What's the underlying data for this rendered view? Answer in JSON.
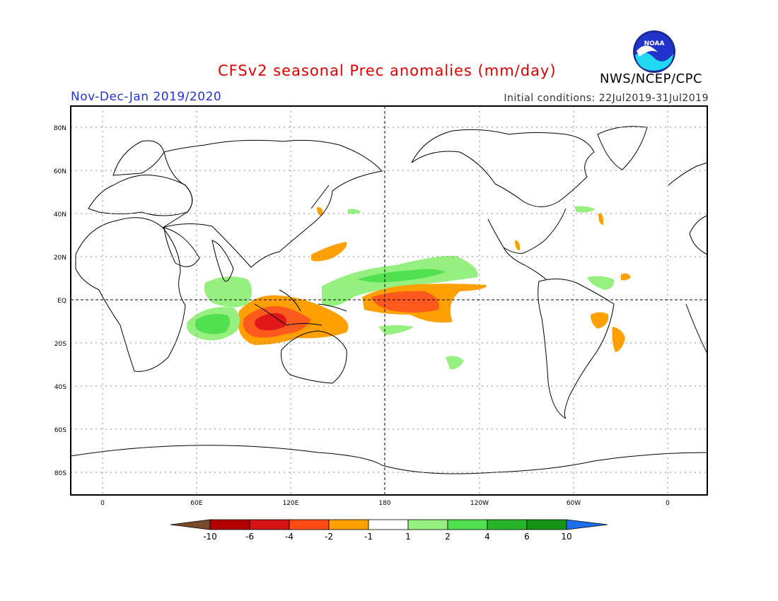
{
  "header": {
    "title": "CFSv2 seasonal Prec anomalies (mm/day)",
    "period": "Nov-Dec-Jan 2019/2020",
    "initial_conditions": "Initial conditions: 22Jul2019-31Jul2019",
    "agency": "NWS/NCEP/CPC",
    "logo_text": "NOAA"
  },
  "map": {
    "lat_labels": [
      "80N",
      "60N",
      "40N",
      "20N",
      "EQ",
      "20S",
      "40S",
      "60S",
      "80S"
    ],
    "lon_labels": [
      "0",
      "60E",
      "120E",
      "180",
      "120W",
      "60W",
      "0"
    ],
    "grid": "dotted",
    "projection": "cylindrical equidistant",
    "center_longitude": "180"
  },
  "colorbar": {
    "labels": [
      "-10",
      "-6",
      "-4",
      "-2",
      "-1",
      "1",
      "2",
      "4",
      "6",
      "10"
    ],
    "colors": [
      "#7a4a2a",
      "#b30000",
      "#d41414",
      "#ff4a14",
      "#ffa000",
      "#ffffff",
      "#96f080",
      "#50e050",
      "#28b428",
      "#149614",
      "#1e6ef0"
    ]
  },
  "legend_colors": {
    "dry_strong": "#e01818",
    "dry_moderate": "#ff5a1e",
    "dry_weak": "#ffa000",
    "wet_weak": "#96f080",
    "wet_moderate": "#50e050",
    "wet_strong": "#28b428"
  }
}
